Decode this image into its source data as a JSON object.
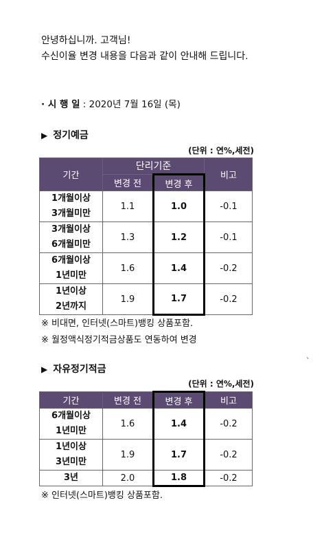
{
  "greeting": {
    "line1": "안녕하십니까. 고객님!",
    "line2": "수신이율 변경 내용을 다음과 같이 안내해 드립니다."
  },
  "effective": {
    "label": "· 시 행 일",
    "value": " : 2020년 7월 16일 (목)"
  },
  "deposit": {
    "marker": "▶",
    "title": "정기예금",
    "unit": "(단위 : 연%,세전)",
    "headers": {
      "period": "기간",
      "group": "단리기준",
      "before": "변경 전",
      "after": "변경 후",
      "note": "비고"
    },
    "rows": [
      {
        "p1": "1개월이상",
        "p2": "3개월미만",
        "before": "1.1",
        "after": "1.0",
        "note": "-0.1"
      },
      {
        "p1": "3개월이상",
        "p2": "6개월미만",
        "before": "1.3",
        "after": "1.2",
        "note": "-0.1"
      },
      {
        "p1": "6개월이상",
        "p2": "1년미만",
        "before": "1.6",
        "after": "1.4",
        "note": "-0.2"
      },
      {
        "p1": "1년이상",
        "p2": "2년까지",
        "before": "1.9",
        "after": "1.7",
        "note": "-0.2"
      }
    ],
    "notes": [
      "※ 비대면, 인터넷(스마트)뱅킹 상품포함.",
      "※ 월정액식정기적금상품도 연동하여 변경"
    ]
  },
  "savings": {
    "marker": "▶",
    "title": "자유정기적금",
    "unit": "(단위 : 연%,세전)",
    "headers": {
      "period": "기간",
      "before": "변경 전",
      "after": "변경 후",
      "note": "비고"
    },
    "rows": [
      {
        "p1": "6개월이상",
        "p2": "1년미만",
        "before": "1.6",
        "after": "1.4",
        "note": "-0.2"
      },
      {
        "p1": "1년이상",
        "p2": "3년미만",
        "before": "1.9",
        "after": "1.7",
        "note": "-0.2"
      },
      {
        "p1": "3년",
        "p2": "",
        "before": "2.0",
        "after": "1.8",
        "note": "-0.2"
      }
    ],
    "notes": [
      "※ 인터넷(스마트)뱅킹 상품포함."
    ]
  },
  "stray_mark": "`",
  "colors": {
    "header_bg": "#5b4a72",
    "header_text": "#ffffff",
    "highlight_border": "#000000"
  }
}
